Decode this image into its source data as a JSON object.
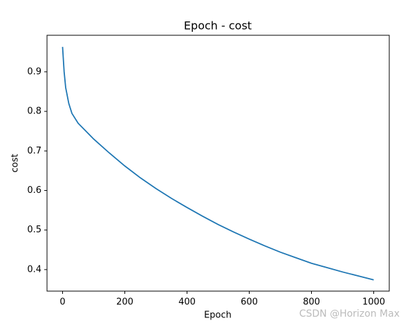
{
  "chart_data": {
    "type": "line",
    "title": "Epoch - cost",
    "x_label": "Epoch",
    "y_label": "cost",
    "x": [
      0,
      5,
      10,
      20,
      30,
      50,
      75,
      100,
      150,
      200,
      250,
      300,
      350,
      400,
      450,
      500,
      550,
      600,
      650,
      700,
      750,
      800,
      850,
      900,
      950,
      1000
    ],
    "series": [
      {
        "name": "cost",
        "color": "#1f77b4",
        "values": [
          0.963,
          0.9,
          0.86,
          0.82,
          0.795,
          0.77,
          0.75,
          0.73,
          0.695,
          0.662,
          0.632,
          0.605,
          0.58,
          0.557,
          0.535,
          0.514,
          0.495,
          0.477,
          0.46,
          0.444,
          0.43,
          0.416,
          0.405,
          0.394,
          0.384,
          0.374
        ]
      }
    ],
    "xlim": [
      -50,
      1050
    ],
    "ylim": [
      0.3456,
      0.9924
    ],
    "xticks": [
      0,
      200,
      400,
      600,
      800,
      1000
    ],
    "yticks": [
      0.4,
      0.5,
      0.6,
      0.7,
      0.8,
      0.9
    ],
    "grid": false,
    "watermark": "CSDN @Horizon Max"
  }
}
